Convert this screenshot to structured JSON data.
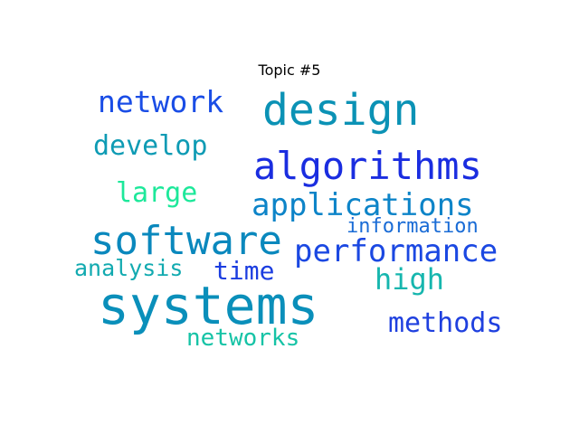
{
  "title": "Topic #5",
  "words": [
    {
      "text": "design",
      "color": "#0b92b5"
    },
    {
      "text": "network",
      "color": "#1a4de6"
    },
    {
      "text": "algorithms",
      "color": "#1a2de0"
    },
    {
      "text": "develop",
      "color": "#0e9bb4"
    },
    {
      "text": "large",
      "color": "#1de89a"
    },
    {
      "text": "applications",
      "color": "#0d84c8"
    },
    {
      "text": "information",
      "color": "#1a6cd6"
    },
    {
      "text": "software",
      "color": "#0a88bd"
    },
    {
      "text": "performance",
      "color": "#1b48e2"
    },
    {
      "text": "analysis",
      "color": "#12aab0"
    },
    {
      "text": "time",
      "color": "#1b3de0"
    },
    {
      "text": "high",
      "color": "#16b6ae"
    },
    {
      "text": "systems",
      "color": "#0a8fba"
    },
    {
      "text": "methods",
      "color": "#1f40df"
    },
    {
      "text": "networks",
      "color": "#16c3a6"
    }
  ]
}
